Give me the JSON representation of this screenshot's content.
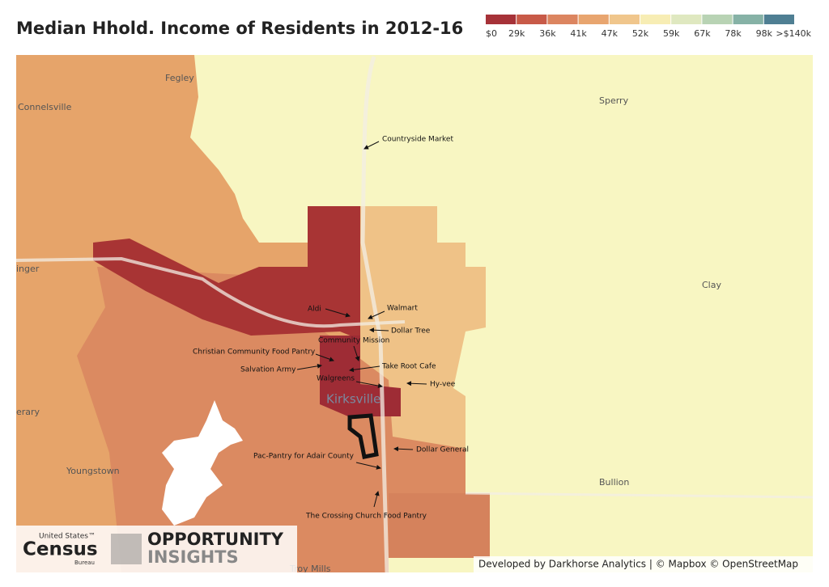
{
  "title": "Median Hhold. Income of Residents in 2012-16",
  "legend": {
    "labels": [
      "$0",
      "29k",
      "36k",
      "41k",
      "47k",
      "52k",
      "59k",
      "67k",
      "78k",
      "98k",
      ">$140k"
    ],
    "colors": [
      "#a63238",
      "#c85a48",
      "#dc8560",
      "#e8a56f",
      "#f0c68c",
      "#f7edb4",
      "#dfe8c0",
      "#b8d3b4",
      "#86b2a6",
      "#4f7f93"
    ]
  },
  "places": [
    "Fegley",
    "Connelsville",
    "Sperry",
    "Clay",
    "Bullion",
    "Youngstown",
    "Kirksville",
    "inger",
    "erary",
    "Troy Mills"
  ],
  "pois": [
    "Countryside Market",
    "Aldi",
    "Walmart",
    "Dollar Tree",
    "Community Mission",
    "Christian Community Food Pantry",
    "Take Root Cafe",
    "Salvation Army",
    "Walgreens",
    "Hy-vee",
    "Dollar General",
    "Pac-Pantry for Adair County",
    "The Crossing Church Food Pantry"
  ],
  "logos": {
    "census": [
      "United States™",
      "Census",
      "Bureau"
    ],
    "opportunity": [
      "OPPORTUNITY",
      "INSIGHTS"
    ]
  },
  "attribution": "Developed by Darkhorse Analytics | © Mapbox © OpenStreetMap"
}
